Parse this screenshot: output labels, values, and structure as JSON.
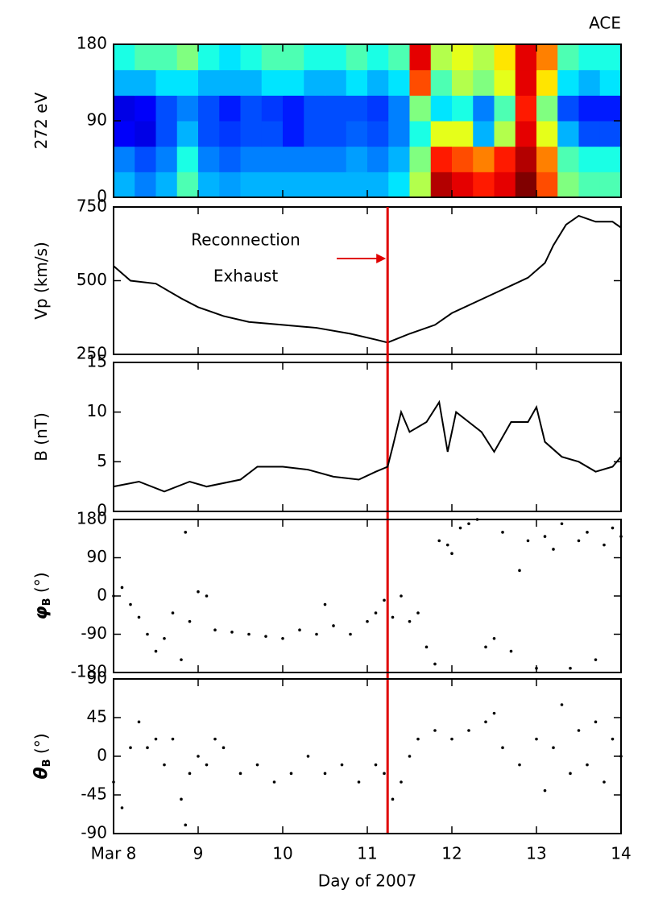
{
  "chart_data": [
    {
      "type": "heatmap",
      "title": "ACE",
      "ylabel": [
        "272 eV"
      ],
      "xlim": [
        8,
        14
      ],
      "ylim": [
        0,
        180
      ],
      "yticks": [
        0,
        90,
        180
      ],
      "colormap": "jet",
      "x_edges": [
        8,
        8.25,
        8.5,
        8.75,
        9,
        9.25,
        9.5,
        9.75,
        10,
        10.25,
        10.5,
        10.75,
        11,
        11.25,
        11.5,
        11.75,
        12,
        12.25,
        12.5,
        12.75,
        13,
        13.25,
        13.5,
        13.75,
        14
      ],
      "y_edges": [
        0,
        30,
        60,
        90,
        120,
        150,
        180
      ],
      "z": [
        [
          0.3,
          0.25,
          0.3,
          0.45,
          0.3,
          0.28,
          0.3,
          0.3,
          0.3,
          0.3,
          0.3,
          0.3,
          0.3,
          0.35,
          0.55,
          0.95,
          0.9,
          0.85,
          0.9,
          1.0,
          0.8,
          0.5,
          0.45,
          0.45
        ],
        [
          0.25,
          0.2,
          0.25,
          0.4,
          0.25,
          0.22,
          0.25,
          0.25,
          0.25,
          0.25,
          0.25,
          0.28,
          0.25,
          0.3,
          0.5,
          0.85,
          0.8,
          0.75,
          0.85,
          0.95,
          0.75,
          0.45,
          0.4,
          0.4
        ],
        [
          0.12,
          0.1,
          0.2,
          0.3,
          0.2,
          0.18,
          0.2,
          0.2,
          0.15,
          0.2,
          0.2,
          0.22,
          0.2,
          0.25,
          0.4,
          0.6,
          0.6,
          0.3,
          0.55,
          0.9,
          0.6,
          0.3,
          0.2,
          0.2
        ],
        [
          0.1,
          0.12,
          0.2,
          0.25,
          0.2,
          0.15,
          0.2,
          0.18,
          0.15,
          0.2,
          0.2,
          0.2,
          0.18,
          0.25,
          0.5,
          0.35,
          0.4,
          0.25,
          0.45,
          0.85,
          0.5,
          0.2,
          0.15,
          0.15
        ],
        [
          0.3,
          0.3,
          0.35,
          0.35,
          0.3,
          0.3,
          0.3,
          0.35,
          0.35,
          0.3,
          0.3,
          0.35,
          0.3,
          0.35,
          0.8,
          0.45,
          0.55,
          0.5,
          0.6,
          0.9,
          0.65,
          0.35,
          0.3,
          0.35
        ],
        [
          0.4,
          0.45,
          0.45,
          0.5,
          0.4,
          0.35,
          0.4,
          0.45,
          0.45,
          0.4,
          0.4,
          0.45,
          0.4,
          0.45,
          0.9,
          0.55,
          0.6,
          0.55,
          0.65,
          0.9,
          0.75,
          0.45,
          0.4,
          0.4
        ]
      ]
    },
    {
      "type": "line",
      "ylabel": [
        "Vp (km/s)"
      ],
      "xlim": [
        8,
        14
      ],
      "ylim": [
        250,
        750
      ],
      "yticks": [
        250,
        500,
        750
      ],
      "color": "#000000",
      "annotation": [
        "Reconnection",
        "Exhaust"
      ],
      "vline": {
        "x": 11.24,
        "color": "#e00000"
      },
      "x": [
        8.0,
        8.2,
        8.5,
        8.8,
        9.0,
        9.3,
        9.6,
        10.0,
        10.4,
        10.8,
        11.1,
        11.24,
        11.5,
        11.8,
        12.0,
        12.3,
        12.6,
        12.9,
        13.1,
        13.2,
        13.35,
        13.5,
        13.7,
        13.9,
        14.0
      ],
      "values": [
        550,
        500,
        490,
        440,
        410,
        380,
        360,
        350,
        340,
        320,
        300,
        290,
        320,
        350,
        390,
        430,
        470,
        510,
        560,
        620,
        690,
        720,
        700,
        700,
        680
      ]
    },
    {
      "type": "line",
      "ylabel": [
        "B (nT)"
      ],
      "xlim": [
        8,
        14
      ],
      "ylim": [
        0,
        15
      ],
      "yticks": [
        0,
        5,
        10,
        15
      ],
      "color": "#000000",
      "x": [
        8.0,
        8.3,
        8.6,
        8.9,
        9.1,
        9.5,
        9.7,
        10.0,
        10.3,
        10.6,
        10.9,
        11.1,
        11.24,
        11.3,
        11.4,
        11.5,
        11.7,
        11.85,
        11.95,
        12.05,
        12.2,
        12.35,
        12.5,
        12.7,
        12.9,
        13.0,
        13.1,
        13.3,
        13.5,
        13.7,
        13.9,
        14.0
      ],
      "values": [
        2.5,
        3,
        2,
        3,
        2.5,
        3.2,
        4.5,
        4.5,
        4.2,
        3.5,
        3.2,
        4,
        4.5,
        6.5,
        10,
        8,
        9,
        11,
        6,
        10,
        9,
        8,
        6,
        9,
        9,
        10.5,
        7,
        5.5,
        5,
        4,
        4.5,
        5.5
      ]
    },
    {
      "type": "scatter",
      "ylabel": [
        "φ",
        "B",
        " (°)"
      ],
      "xlim": [
        8,
        14
      ],
      "ylim": [
        -180,
        180
      ],
      "yticks": [
        -180,
        -90,
        0,
        90,
        180
      ],
      "color": "#000000",
      "x": [
        8.0,
        8.1,
        8.2,
        8.3,
        8.4,
        8.5,
        8.6,
        8.7,
        8.8,
        8.85,
        8.9,
        9.0,
        9.1,
        9.2,
        9.4,
        9.6,
        9.8,
        10.0,
        10.2,
        10.4,
        10.5,
        10.6,
        10.8,
        11.0,
        11.1,
        11.2,
        11.3,
        11.4,
        11.5,
        11.6,
        11.7,
        11.8,
        11.85,
        11.95,
        12.0,
        12.1,
        12.2,
        12.3,
        12.4,
        12.5,
        12.6,
        12.7,
        12.8,
        12.9,
        13.0,
        13.1,
        13.2,
        13.3,
        13.4,
        13.5,
        13.6,
        13.7,
        13.8,
        13.9,
        14.0
      ],
      "values": [
        0,
        20,
        -20,
        -50,
        -90,
        -130,
        -100,
        -40,
        -150,
        150,
        -60,
        10,
        0,
        -80,
        -85,
        -90,
        -95,
        -100,
        -80,
        -90,
        -20,
        -70,
        -90,
        -60,
        -40,
        -10,
        -50,
        0,
        -60,
        -40,
        -120,
        -160,
        130,
        120,
        100,
        160,
        170,
        180,
        -120,
        -100,
        150,
        -130,
        60,
        130,
        -170,
        140,
        110,
        170,
        -170,
        130,
        150,
        -150,
        120,
        160,
        140
      ]
    },
    {
      "type": "scatter",
      "ylabel": [
        "θ",
        "B",
        " (°)"
      ],
      "xlabel": "Day of 2007",
      "xlim": [
        8,
        14
      ],
      "ylim": [
        -90,
        90
      ],
      "yticks": [
        -90,
        -45,
        0,
        45,
        90
      ],
      "color": "#000000",
      "xticks": [
        {
          "value": 8,
          "label": "Mar 8"
        },
        9,
        10,
        11,
        12,
        13,
        14
      ],
      "x": [
        8.0,
        8.1,
        8.2,
        8.3,
        8.4,
        8.5,
        8.6,
        8.7,
        8.8,
        8.85,
        8.9,
        9.0,
        9.1,
        9.2,
        9.3,
        9.5,
        9.7,
        9.9,
        10.1,
        10.3,
        10.5,
        10.7,
        10.9,
        11.1,
        11.2,
        11.3,
        11.4,
        11.5,
        11.6,
        11.8,
        12.0,
        12.2,
        12.4,
        12.5,
        12.6,
        12.8,
        13.0,
        13.1,
        13.2,
        13.3,
        13.4,
        13.5,
        13.6,
        13.7,
        13.8,
        13.9,
        14.0
      ],
      "values": [
        -30,
        -60,
        10,
        40,
        10,
        20,
        -10,
        20,
        -50,
        -80,
        -20,
        0,
        -10,
        20,
        10,
        -20,
        -10,
        -30,
        -20,
        0,
        -20,
        -10,
        -30,
        -10,
        -20,
        -50,
        -30,
        0,
        20,
        30,
        20,
        30,
        40,
        50,
        10,
        -10,
        20,
        -40,
        10,
        60,
        -20,
        30,
        -10,
        40,
        -30,
        20,
        0
      ]
    }
  ]
}
